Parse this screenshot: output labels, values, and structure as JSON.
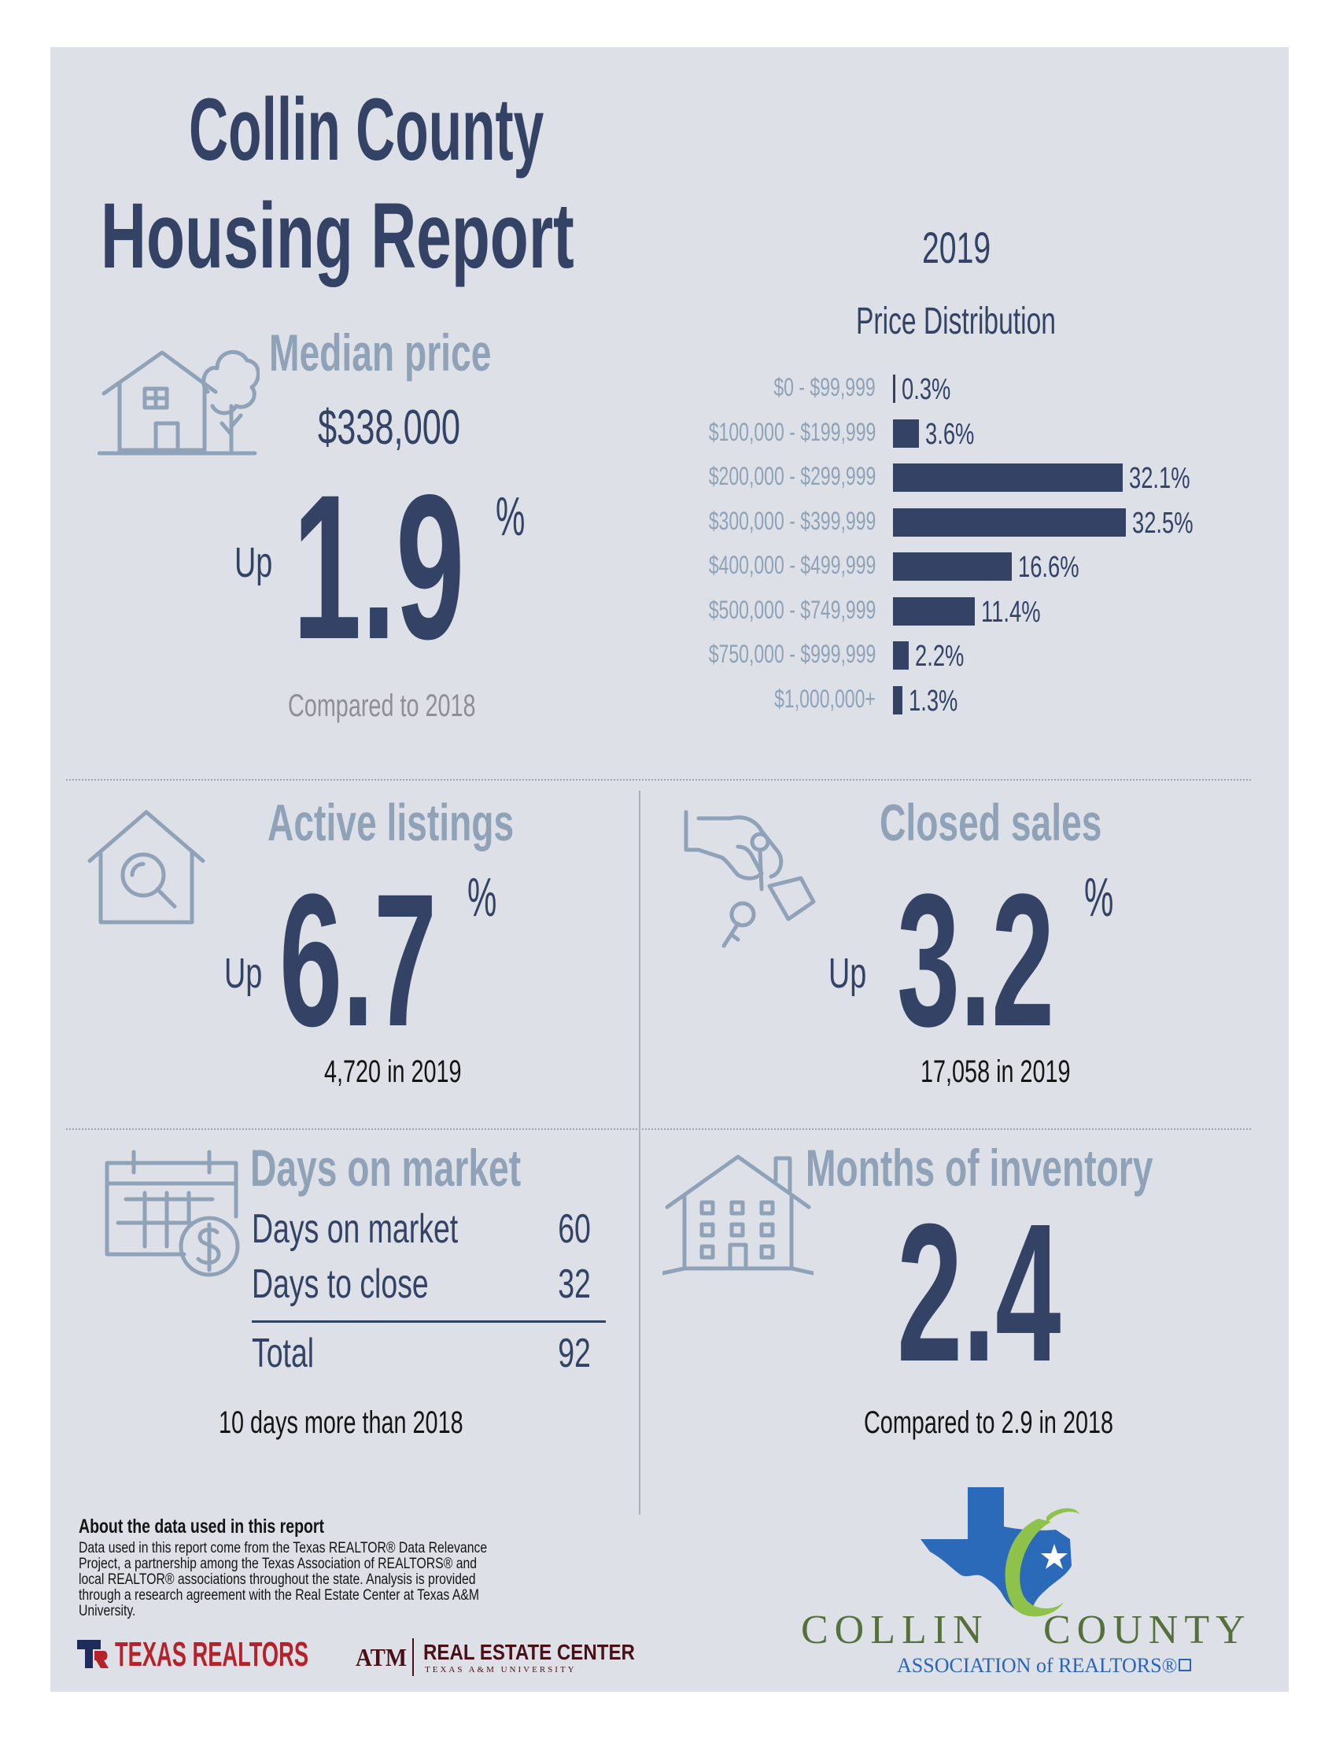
{
  "header": {
    "title_line1": "Collin County",
    "title_line2": "Housing Report",
    "year": "2019"
  },
  "median_price": {
    "heading": "Median price",
    "value": "$338,000",
    "direction": "Up",
    "change": "1.9",
    "change_unit": "%",
    "comparison": "Compared to 2018"
  },
  "price_distribution": {
    "title": "Price Distribution"
  },
  "chart_data": {
    "type": "bar",
    "orientation": "horizontal",
    "title": "Price Distribution",
    "categories": [
      "$0 - $99,999",
      "$100,000 - $199,999",
      "$200,000 - $299,999",
      "$300,000 - $399,999",
      "$400,000 - $499,999",
      "$500,000 - $749,999",
      "$750,000 - $999,999",
      "$1,000,000+"
    ],
    "values": [
      0.3,
      3.6,
      32.1,
      32.5,
      16.6,
      11.4,
      2.2,
      1.3
    ],
    "value_labels": [
      "0.3%",
      "3.6%",
      "32.1%",
      "32.5%",
      "16.6%",
      "11.4%",
      "2.2%",
      "1.3%"
    ],
    "bar_color": "#344266",
    "label_color": "#8fa2b8",
    "grid": false
  },
  "active_listings": {
    "heading": "Active listings",
    "direction": "Up",
    "change": "6.7",
    "change_unit": "%",
    "detail": "4,720 in 2019"
  },
  "closed_sales": {
    "heading": "Closed sales",
    "direction": "Up",
    "change": "3.2",
    "change_unit": "%",
    "detail": "17,058 in 2019"
  },
  "days_on_market": {
    "heading": "Days on market",
    "rows": [
      {
        "label": "Days on market",
        "value": "60"
      },
      {
        "label": "Days to close",
        "value": "32"
      }
    ],
    "total_label": "Total",
    "total_value": "92",
    "detail": "10 days more than 2018"
  },
  "months_inventory": {
    "heading": "Months of inventory",
    "value": "2.4",
    "detail": "Compared to 2.9 in 2018"
  },
  "about": {
    "heading": "About the data used in this report",
    "body": "Data used in this report come from the Texas REALTOR® Data Relevance Project, a partnership among the Texas Association of REALTORS® and local REALTOR® associations throughout the state. Analysis is provided through a research agreement with the Real Estate Center at Texas A&M University."
  },
  "logos": {
    "texas_realtors": "TEXAS REALTORS",
    "real_estate_center": "REAL ESTATE CENTER",
    "real_estate_center_sub": "TEXAS A&M UNIVERSITY",
    "atm": "ATM",
    "collin_county_left": "COLLIN",
    "collin_county_right": "COUNTY",
    "association": "ASSOCIATION of REALTORS®"
  },
  "colors": {
    "navy": "#344266",
    "steel": "#8fa2b8",
    "panel": "#dde1e7",
    "texas_red": "#b5222b",
    "texas_blue": "#2a63b8",
    "green": "#8fc24a"
  },
  "icons": [
    "house-tree-icon",
    "house-search-icon",
    "hand-key-icon",
    "calendar-dollar-icon",
    "apartment-building-icon",
    "texas-map-icon"
  ]
}
